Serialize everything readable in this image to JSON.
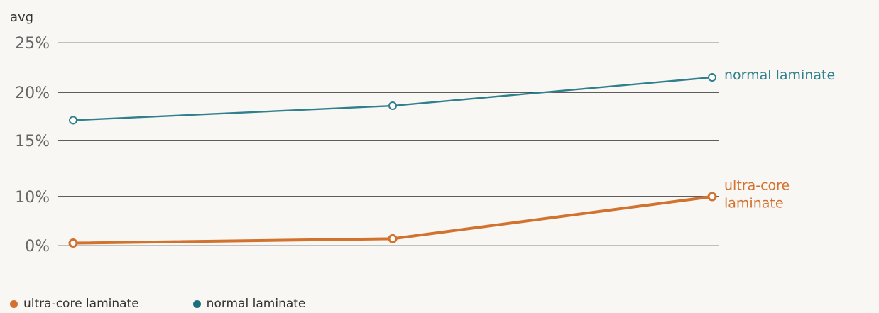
{
  "chart_data": {
    "type": "line",
    "ylabel": "avg",
    "x": [
      1,
      2,
      3
    ],
    "yticks": [
      {
        "value": 0,
        "label": "0%",
        "strong": false
      },
      {
        "value": 10,
        "label": "10%",
        "strong": true
      },
      {
        "value": 15,
        "label": "15%",
        "strong": true
      },
      {
        "value": 20,
        "label": "20%",
        "strong": true
      },
      {
        "value": 25,
        "label": "25%",
        "strong": false
      }
    ],
    "series": [
      {
        "name": "normal laminate",
        "end_label": [
          "normal laminate"
        ],
        "color": "#2f7f8c",
        "values": [
          17.1,
          18.6,
          21.5
        ]
      },
      {
        "name": "ultra-core laminate",
        "end_label": [
          "ultra-core",
          "laminate"
        ],
        "color": "#d2722f",
        "values": [
          0.5,
          1.4,
          10
        ]
      }
    ],
    "legend": {
      "position": "bottom-left",
      "items": [
        {
          "name": "ultra-core laminate",
          "color": "#d2722f"
        },
        {
          "name": "normal laminate",
          "color": "#1c6f7c"
        }
      ]
    },
    "grid": true
  }
}
